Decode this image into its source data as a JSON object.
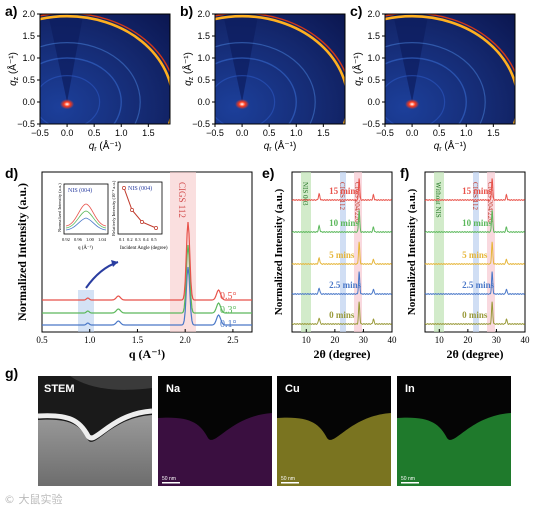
{
  "figure": {
    "panel_labels": [
      "a)",
      "b)",
      "c)",
      "d)",
      "e)",
      "f)",
      "g)"
    ],
    "watermark": "© 大鼠实验"
  },
  "giwaxs": {
    "ylabel_q": "q",
    "ylabel_sub": "z",
    "ylabel_unit": " (Å⁻¹)",
    "xlabel_q": "q",
    "xlabel_sub": "r",
    "xlabel_unit": " (Å⁻¹)",
    "x_ticks": [
      "−0.5",
      "0.0",
      "0.5",
      "1.0",
      "1.5"
    ],
    "y_ticks": [
      "−0.5",
      "0.0",
      "0.5",
      "1.0",
      "1.5",
      "2.0"
    ]
  },
  "panel_d": {
    "xlabel": "q (A⁻¹)",
    "ylabel": "Normalized Intensity (a.u.)",
    "x_ticks": [
      "0.5",
      "1.0",
      "1.5",
      "2.0",
      "2.5"
    ],
    "peak_label": "CIGS 112",
    "inset1_title": "NIS (004)",
    "inset1_ylabel": "Normalized Intensity (a.u.)",
    "inset1_xlabel": "q (Å⁻¹)",
    "inset1_ticks": [
      "0.92",
      "0.96",
      "1.00",
      "1.04"
    ],
    "inset2_title": "NIS (004)",
    "inset2_ylabel": "Relatively Intensity (10⁻² a.u.)",
    "inset2_xlabel": "Incident Angle (degree)",
    "inset2_ticks": [
      "0.1",
      "0.2",
      "0.3",
      "0.4",
      "0.5"
    ],
    "angle_labels": [
      "0.5°",
      "0.3°",
      "0.1°"
    ]
  },
  "panel_e": {
    "xlabel": "2θ (degree)",
    "ylabel": "Normalized Intensity (a.u.)",
    "x_ticks": [
      "10",
      "20",
      "30",
      "40"
    ],
    "band1_label": "NIS 003",
    "band2_label": "CIGS 112",
    "band3_label": "CIGS 204/220",
    "time_labels": [
      "15 mins",
      "10 mins",
      "5 mins",
      "2.5 mins",
      "0 mins"
    ]
  },
  "panel_f": {
    "xlabel": "2θ (degree)",
    "ylabel": "Normalized Intensity (a.u.)",
    "x_ticks": [
      "10",
      "20",
      "30",
      "40"
    ],
    "band1_label": "Without NIS",
    "band2_label": "CIGS 112",
    "band3_label": "CIGS 204/220",
    "time_labels": [
      "15 mins",
      "10 mins",
      "5 mins",
      "2.5 mins",
      "0 mins"
    ]
  },
  "panel_g": {
    "labels": [
      "STEM",
      "Na",
      "Cu",
      "In"
    ],
    "scale_bar": "50 nm",
    "colors": [
      "#ffffff",
      "#c23ccf",
      "#d9d23a",
      "#3ed45a"
    ]
  },
  "chart_data": [
    {
      "type": "line",
      "title": "",
      "xlabel": "q (A⁻¹)",
      "ylabel": "Normalized Intensity (a.u.)",
      "xlim": [
        0.5,
        2.7
      ],
      "series": [
        {
          "name": "0.5°",
          "color": "#e8524a",
          "peaks_q": [
            1.3,
            2.03,
            2.35
          ]
        },
        {
          "name": "0.3°",
          "color": "#5cb85c",
          "peaks_q": [
            1.3,
            2.03,
            2.35
          ]
        },
        {
          "name": "0.1°",
          "color": "#4a78c8",
          "peaks_q": [
            1.3,
            2.03,
            2.35
          ]
        }
      ]
    },
    {
      "type": "line",
      "title": "",
      "xlabel": "2θ (degree)",
      "ylabel": "Normalized Intensity (a.u.)",
      "xlim": [
        5,
        40
      ],
      "series": [
        {
          "name": "15 mins",
          "color": "#e8524a",
          "peaks_2theta": [
            14.5,
            28.5,
            33.5
          ]
        },
        {
          "name": "10 mins",
          "color": "#5cb85c",
          "peaks_2theta": [
            14.5,
            28.5,
            33.5
          ]
        },
        {
          "name": "5 mins",
          "color": "#e6b63a",
          "peaks_2theta": [
            14.5,
            28.5,
            33.5
          ]
        },
        {
          "name": "2.5 mins",
          "color": "#4a78c8",
          "peaks_2theta": [
            14.5,
            28.5,
            33.5
          ]
        },
        {
          "name": "0 mins",
          "color": "#9a9a3a",
          "peaks_2theta": [
            14.5,
            28.5,
            33.5
          ]
        }
      ]
    },
    {
      "type": "line",
      "title": "",
      "xlabel": "2θ (degree)",
      "ylabel": "Normalized Intensity (a.u.)",
      "xlim": [
        5,
        40
      ],
      "series": [
        {
          "name": "15 mins",
          "color": "#e8524a",
          "peaks_2theta": [
            28.5,
            33.5
          ]
        },
        {
          "name": "10 mins",
          "color": "#5cb85c",
          "peaks_2theta": [
            28.5,
            33.5
          ]
        },
        {
          "name": "5 mins",
          "color": "#e6b63a",
          "peaks_2theta": [
            28.5,
            33.5
          ]
        },
        {
          "name": "2.5 mins",
          "color": "#4a78c8",
          "peaks_2theta": [
            28.5,
            33.5
          ]
        },
        {
          "name": "0 mins",
          "color": "#9a9a3a",
          "peaks_2theta": [
            28.5,
            33.5
          ]
        }
      ]
    }
  ]
}
